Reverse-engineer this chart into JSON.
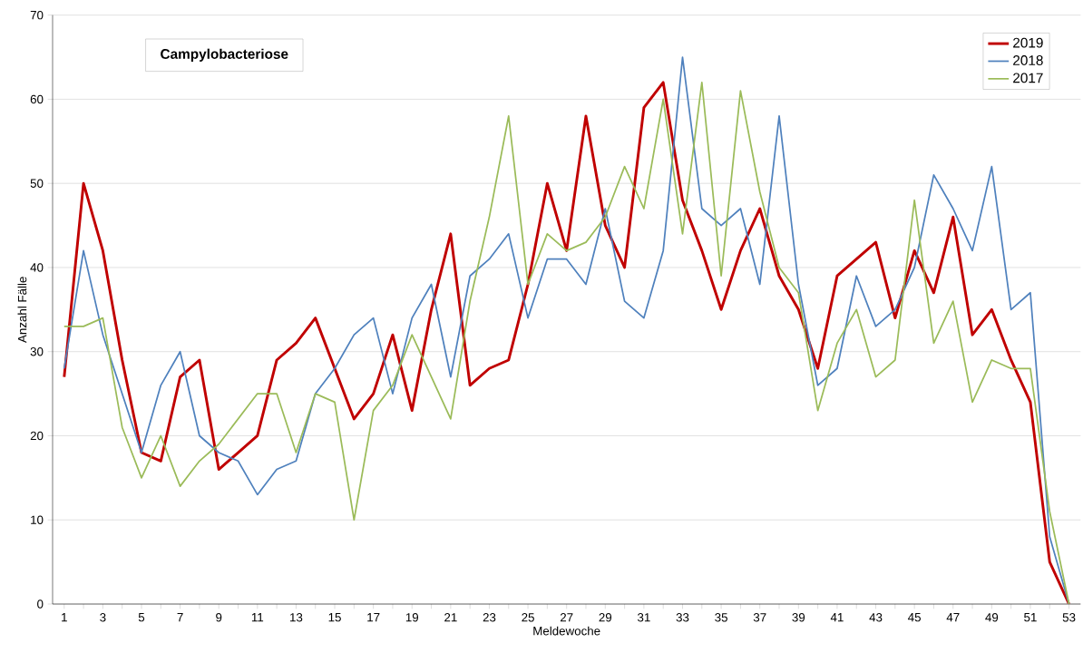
{
  "chart_data": {
    "type": "line",
    "title": "Campylobacteriose",
    "xlabel": "Meldewoche",
    "ylabel": "Anzahl Fälle",
    "x": [
      1,
      2,
      3,
      4,
      5,
      6,
      7,
      8,
      9,
      10,
      11,
      12,
      13,
      14,
      15,
      16,
      17,
      18,
      19,
      20,
      21,
      22,
      23,
      24,
      25,
      26,
      27,
      28,
      29,
      30,
      31,
      32,
      33,
      34,
      35,
      36,
      37,
      38,
      39,
      40,
      41,
      42,
      43,
      44,
      45,
      46,
      47,
      48,
      49,
      50,
      51,
      52,
      53
    ],
    "xlim": [
      0.4,
      53.6
    ],
    "xticks": [
      1,
      {
        "value": 2,
        "label": null
      },
      3,
      {
        "value": 4,
        "label": null
      },
      5,
      {
        "value": 6,
        "label": null
      },
      7,
      {
        "value": 8,
        "label": null
      },
      9,
      {
        "value": 10,
        "label": null
      },
      11,
      {
        "value": 12,
        "label": null
      },
      13,
      {
        "value": 14,
        "label": null
      },
      15,
      {
        "value": 16,
        "label": null
      },
      17,
      {
        "value": 18,
        "label": null
      },
      19,
      {
        "value": 20,
        "label": null
      },
      21,
      {
        "value": 22,
        "label": null
      },
      23,
      {
        "value": 24,
        "label": null
      },
      25,
      {
        "value": 26,
        "label": null
      },
      27,
      {
        "value": 28,
        "label": null
      },
      29,
      {
        "value": 30,
        "label": null
      },
      31,
      {
        "value": 32,
        "label": null
      },
      33,
      {
        "value": 34,
        "label": null
      },
      35,
      {
        "value": 36,
        "label": null
      },
      37,
      {
        "value": 38,
        "label": null
      },
      39,
      {
        "value": 40,
        "label": null
      },
      41,
      {
        "value": 42,
        "label": null
      },
      43,
      {
        "value": 44,
        "label": null
      },
      45,
      {
        "value": 46,
        "label": null
      },
      47,
      {
        "value": 48,
        "label": null
      },
      49,
      {
        "value": 50,
        "label": null
      },
      51,
      {
        "value": 52,
        "label": null
      },
      53
    ],
    "ylim": [
      0,
      70
    ],
    "yticks": [
      0,
      10,
      20,
      30,
      40,
      50,
      60,
      70
    ],
    "grid": "y",
    "legend": "top right",
    "marker": "none",
    "line_style": "solid",
    "series": [
      {
        "name": "2019",
        "color": "#c00000",
        "values": [
          27,
          50,
          42,
          29,
          18,
          17,
          27,
          29,
          16,
          18,
          20,
          29,
          31,
          34,
          28,
          22,
          25,
          32,
          23,
          35,
          44,
          26,
          28,
          29,
          38,
          50,
          42,
          58,
          45,
          40,
          59,
          62,
          48,
          42,
          35,
          42,
          47,
          39,
          35,
          28,
          39,
          41,
          43,
          34,
          42,
          37,
          46,
          32,
          35,
          29,
          24,
          5,
          0
        ]
      },
      {
        "name": "2018",
        "color": "#4f81bd",
        "values": [
          28,
          42,
          32,
          25,
          18,
          26,
          30,
          20,
          18,
          17,
          13,
          16,
          17,
          25,
          28,
          32,
          34,
          25,
          34,
          38,
          27,
          39,
          41,
          44,
          34,
          41,
          41,
          38,
          47,
          36,
          34,
          42,
          65,
          47,
          45,
          47,
          38,
          58,
          38,
          26,
          28,
          39,
          33,
          35,
          40,
          51,
          47,
          42,
          52,
          35,
          37,
          8,
          0
        ]
      },
      {
        "name": "2017",
        "color": "#9bbb59",
        "values": [
          33,
          33,
          34,
          21,
          15,
          20,
          14,
          17,
          19,
          22,
          25,
          25,
          18,
          25,
          24,
          10,
          23,
          26,
          32,
          27,
          22,
          36,
          46,
          58,
          38,
          44,
          42,
          43,
          46,
          52,
          47,
          60,
          44,
          62,
          39,
          61,
          49,
          40,
          37,
          23,
          31,
          35,
          27,
          29,
          48,
          31,
          36,
          24,
          29,
          28,
          28,
          11,
          0
        ]
      }
    ]
  }
}
